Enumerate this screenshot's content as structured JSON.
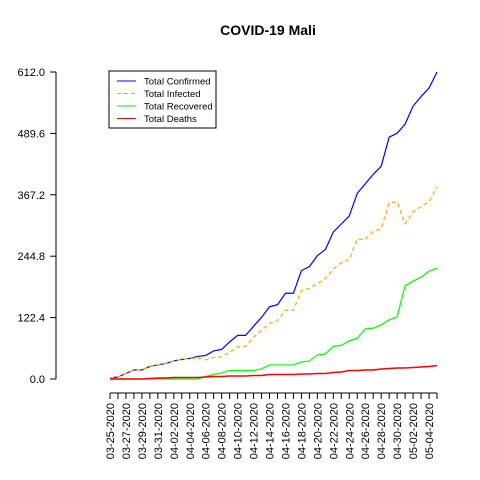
{
  "chart_data": {
    "type": "line",
    "title": "COVID-19 Mali",
    "xlabel": "",
    "ylabel": "",
    "x": [
      "03-25-2020",
      "03-26-2020",
      "03-27-2020",
      "03-28-2020",
      "03-29-2020",
      "03-30-2020",
      "03-31-2020",
      "04-01-2020",
      "04-02-2020",
      "04-03-2020",
      "04-04-2020",
      "04-05-2020",
      "04-06-2020",
      "04-07-2020",
      "04-08-2020",
      "04-09-2020",
      "04-10-2020",
      "04-11-2020",
      "04-12-2020",
      "04-13-2020",
      "04-14-2020",
      "04-15-2020",
      "04-16-2020",
      "04-17-2020",
      "04-18-2020",
      "04-19-2020",
      "04-20-2020",
      "04-21-2020",
      "04-22-2020",
      "04-23-2020",
      "04-24-2020",
      "04-25-2020",
      "04-26-2020",
      "04-27-2020",
      "04-28-2020",
      "04-29-2020",
      "04-30-2020",
      "05-01-2020",
      "05-02-2020",
      "05-03-2020",
      "05-04-2020",
      "05-05-2020"
    ],
    "x_tick_labels": [
      "03-25-2020",
      "03-27-2020",
      "03-29-2020",
      "03-31-2020",
      "04-02-2020",
      "04-04-2020",
      "04-06-2020",
      "04-08-2020",
      "04-10-2020",
      "04-12-2020",
      "04-14-2020",
      "04-16-2020",
      "04-18-2020",
      "04-20-2020",
      "04-22-2020",
      "04-24-2020",
      "04-26-2020",
      "04-28-2020",
      "04-30-2020",
      "05-02-2020",
      "05-04-2020"
    ],
    "y_tick_labels": [
      "0.0",
      "122.4",
      "244.8",
      "367.2",
      "489.6",
      "612.0"
    ],
    "ylim": [
      0,
      612
    ],
    "grid": false,
    "legend_position": "top-left",
    "series": [
      {
        "name": "Total Confirmed",
        "color": "#0000ff",
        "dash": "solid",
        "values": [
          2,
          4,
          11,
          18,
          18,
          25,
          28,
          31,
          36,
          39,
          41,
          45,
          47,
          56,
          59,
          74,
          87,
          87,
          105,
          123,
          144,
          148,
          171,
          171,
          216,
          224,
          246,
          258,
          293,
          309,
          325,
          370,
          389,
          408,
          424,
          482,
          490,
          508,
          544,
          563,
          580,
          612
        ]
      },
      {
        "name": "Total Infected",
        "color": "#ffa500",
        "dash": "dashed",
        "values": [
          2,
          4,
          11,
          18,
          18,
          25,
          28,
          31,
          36,
          39,
          41,
          42,
          38,
          43,
          44,
          53,
          64,
          65,
          83,
          97,
          111,
          116,
          137,
          137,
          176,
          181,
          190,
          200,
          219,
          232,
          238,
          279,
          278,
          294,
          300,
          351,
          353,
          309,
          333,
          344,
          353,
          383
        ]
      },
      {
        "name": "Total Recovered",
        "color": "#00ff00",
        "dash": "solid",
        "values": [
          0,
          0,
          0,
          0,
          0,
          0,
          0,
          0,
          0,
          0,
          0,
          0,
          5,
          9,
          12,
          17,
          17,
          17,
          17,
          20,
          28,
          28,
          28,
          28,
          34,
          36,
          48,
          50,
          65,
          67,
          76,
          81,
          100,
          101,
          108,
          118,
          124,
          186,
          195,
          203,
          215,
          221
        ]
      },
      {
        "name": "Total Deaths",
        "color": "#ff0000",
        "dash": "solid",
        "values": [
          0,
          0,
          0,
          0,
          0,
          1,
          2,
          2,
          3,
          3,
          3,
          3,
          4,
          5,
          5,
          6,
          6,
          6,
          7,
          7,
          9,
          9,
          9,
          9,
          10,
          10,
          11,
          11,
          13,
          14,
          17,
          17,
          18,
          18,
          20,
          21,
          22,
          22,
          23,
          24,
          25,
          27
        ]
      }
    ]
  }
}
